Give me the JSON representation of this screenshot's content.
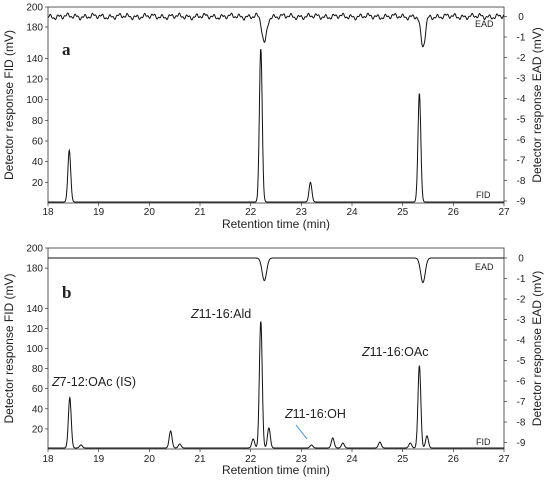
{
  "chart_data": [
    {
      "type": "line",
      "panel": "a",
      "xlabel": "Retention time (min)",
      "ylabel_left": "Detector response FID (mV)",
      "ylabel_right": "Detector response EAD (mV)",
      "xlim": [
        18,
        27
      ],
      "x_ticks": [
        "18",
        "19",
        "20",
        "21",
        "22",
        "23",
        "24",
        "25",
        "26",
        "27"
      ],
      "fid_ylim": [
        0,
        150
      ],
      "fid_ticks": [
        "20",
        "40",
        "60",
        "80",
        "100",
        "120",
        "140"
      ],
      "fid_top_ticks": [
        "180",
        "200"
      ],
      "ead_ylim": [
        -9,
        0
      ],
      "ead_ticks": [
        "0",
        "-1",
        "-2",
        "-3",
        "-4",
        "-5",
        "-6",
        "-7",
        "-8",
        "-9"
      ],
      "series": [
        {
          "name": "FID",
          "baseline": 0,
          "peaks": [
            {
              "x": 18.42,
              "y": 50
            },
            {
              "x": 22.2,
              "y": 148
            },
            {
              "x": 23.18,
              "y": 19
            },
            {
              "x": 25.33,
              "y": 105
            }
          ]
        },
        {
          "name": "EAD",
          "baseline": 0,
          "noise": true,
          "peaks": [
            {
              "x": 22.27,
              "y": -1.3
            },
            {
              "x": 25.4,
              "y": -1.5
            }
          ]
        }
      ],
      "annotations": []
    },
    {
      "type": "line",
      "panel": "b",
      "xlabel": "Retention time (min)",
      "ylabel_left": "Detector response FID (mV)",
      "ylabel_right": "Detector response EAD (mV)",
      "xlim": [
        18,
        27
      ],
      "x_ticks": [
        "18",
        "19",
        "20",
        "21",
        "22",
        "23",
        "24",
        "25",
        "26",
        "27"
      ],
      "fid_ylim": [
        0,
        200
      ],
      "fid_ticks": [
        "20",
        "40",
        "60",
        "80",
        "100",
        "120",
        "140",
        "180",
        "200"
      ],
      "ead_ylim": [
        -9,
        0
      ],
      "ead_ticks": [
        "0",
        "-1",
        "-2",
        "-3",
        "-4",
        "-5",
        "-6",
        "-7",
        "-8",
        "-9"
      ],
      "series": [
        {
          "name": "FID",
          "baseline": 0,
          "peaks": [
            {
              "x": 18.43,
              "y": 50
            },
            {
              "x": 18.65,
              "y": 3
            },
            {
              "x": 20.42,
              "y": 17
            },
            {
              "x": 20.6,
              "y": 4
            },
            {
              "x": 22.05,
              "y": 9
            },
            {
              "x": 22.2,
              "y": 126
            },
            {
              "x": 22.36,
              "y": 20
            },
            {
              "x": 23.2,
              "y": 3
            },
            {
              "x": 23.62,
              "y": 10
            },
            {
              "x": 23.82,
              "y": 5
            },
            {
              "x": 24.55,
              "y": 6
            },
            {
              "x": 25.15,
              "y": 5
            },
            {
              "x": 25.33,
              "y": 82
            },
            {
              "x": 25.48,
              "y": 12
            }
          ]
        },
        {
          "name": "EAD",
          "baseline": 0,
          "noise": false,
          "peaks": [
            {
              "x": 22.27,
              "y": -1.1
            },
            {
              "x": 25.4,
              "y": -1.2
            }
          ]
        }
      ],
      "annotations": [
        {
          "text_italic": "Z",
          "text": "7-12:OAc (IS)",
          "x": 18.43
        },
        {
          "text_italic": "Z",
          "text": "11-16:Ald",
          "x": 22.2
        },
        {
          "text_italic": "Z",
          "text": "11-16:OH",
          "x": 23.2
        },
        {
          "text_italic": "Z",
          "text": "11-16:OAc",
          "x": 25.33
        }
      ]
    }
  ]
}
